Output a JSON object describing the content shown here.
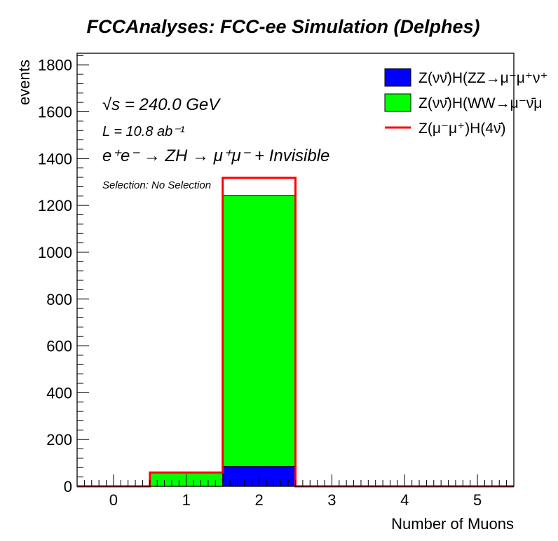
{
  "chart_data": {
    "type": "bar",
    "title": "FCCAnalyses: FCC-ee Simulation (Delphes)",
    "xlabel": "Number of Muons",
    "ylabel": "events",
    "xlim": [
      -0.5,
      5.5
    ],
    "ylim": [
      0,
      1850
    ],
    "x_ticks": [
      "0",
      "1",
      "2",
      "3",
      "4",
      "5"
    ],
    "y_ticks": [
      "0",
      "200",
      "400",
      "600",
      "800",
      "1000",
      "1200",
      "1400",
      "1600",
      "1800"
    ],
    "stacked": true,
    "categories": [
      0,
      1,
      2,
      3,
      4,
      5
    ],
    "series": [
      {
        "name": "Z(νν̄)H(ZZ→μ⁻μ⁺ν⁺",
        "kind": "stacked",
        "color": "#0000ff",
        "values": [
          0,
          0,
          85,
          0,
          0,
          0
        ]
      },
      {
        "name": "Z(νν̄)H(WW→μ⁻ν̄μ",
        "kind": "stacked",
        "color": "#00ff00",
        "values": [
          0,
          57,
          1158,
          0,
          0,
          0
        ]
      },
      {
        "name": "Z(μ⁻μ⁺)H(4ν̄)",
        "kind": "line",
        "color": "#ff0000",
        "values": [
          0,
          59,
          1318,
          0,
          0,
          0
        ]
      }
    ],
    "legend_position": "top-right",
    "annotations": {
      "sqrt_s": "√s = 240.0 GeV",
      "lumi": "L = 10.8 ab⁻¹",
      "process": "e⁺e⁻ → ZH → μ⁺μ⁻ + Invisible",
      "selection": "Selection: No Selection"
    },
    "grid": false
  }
}
